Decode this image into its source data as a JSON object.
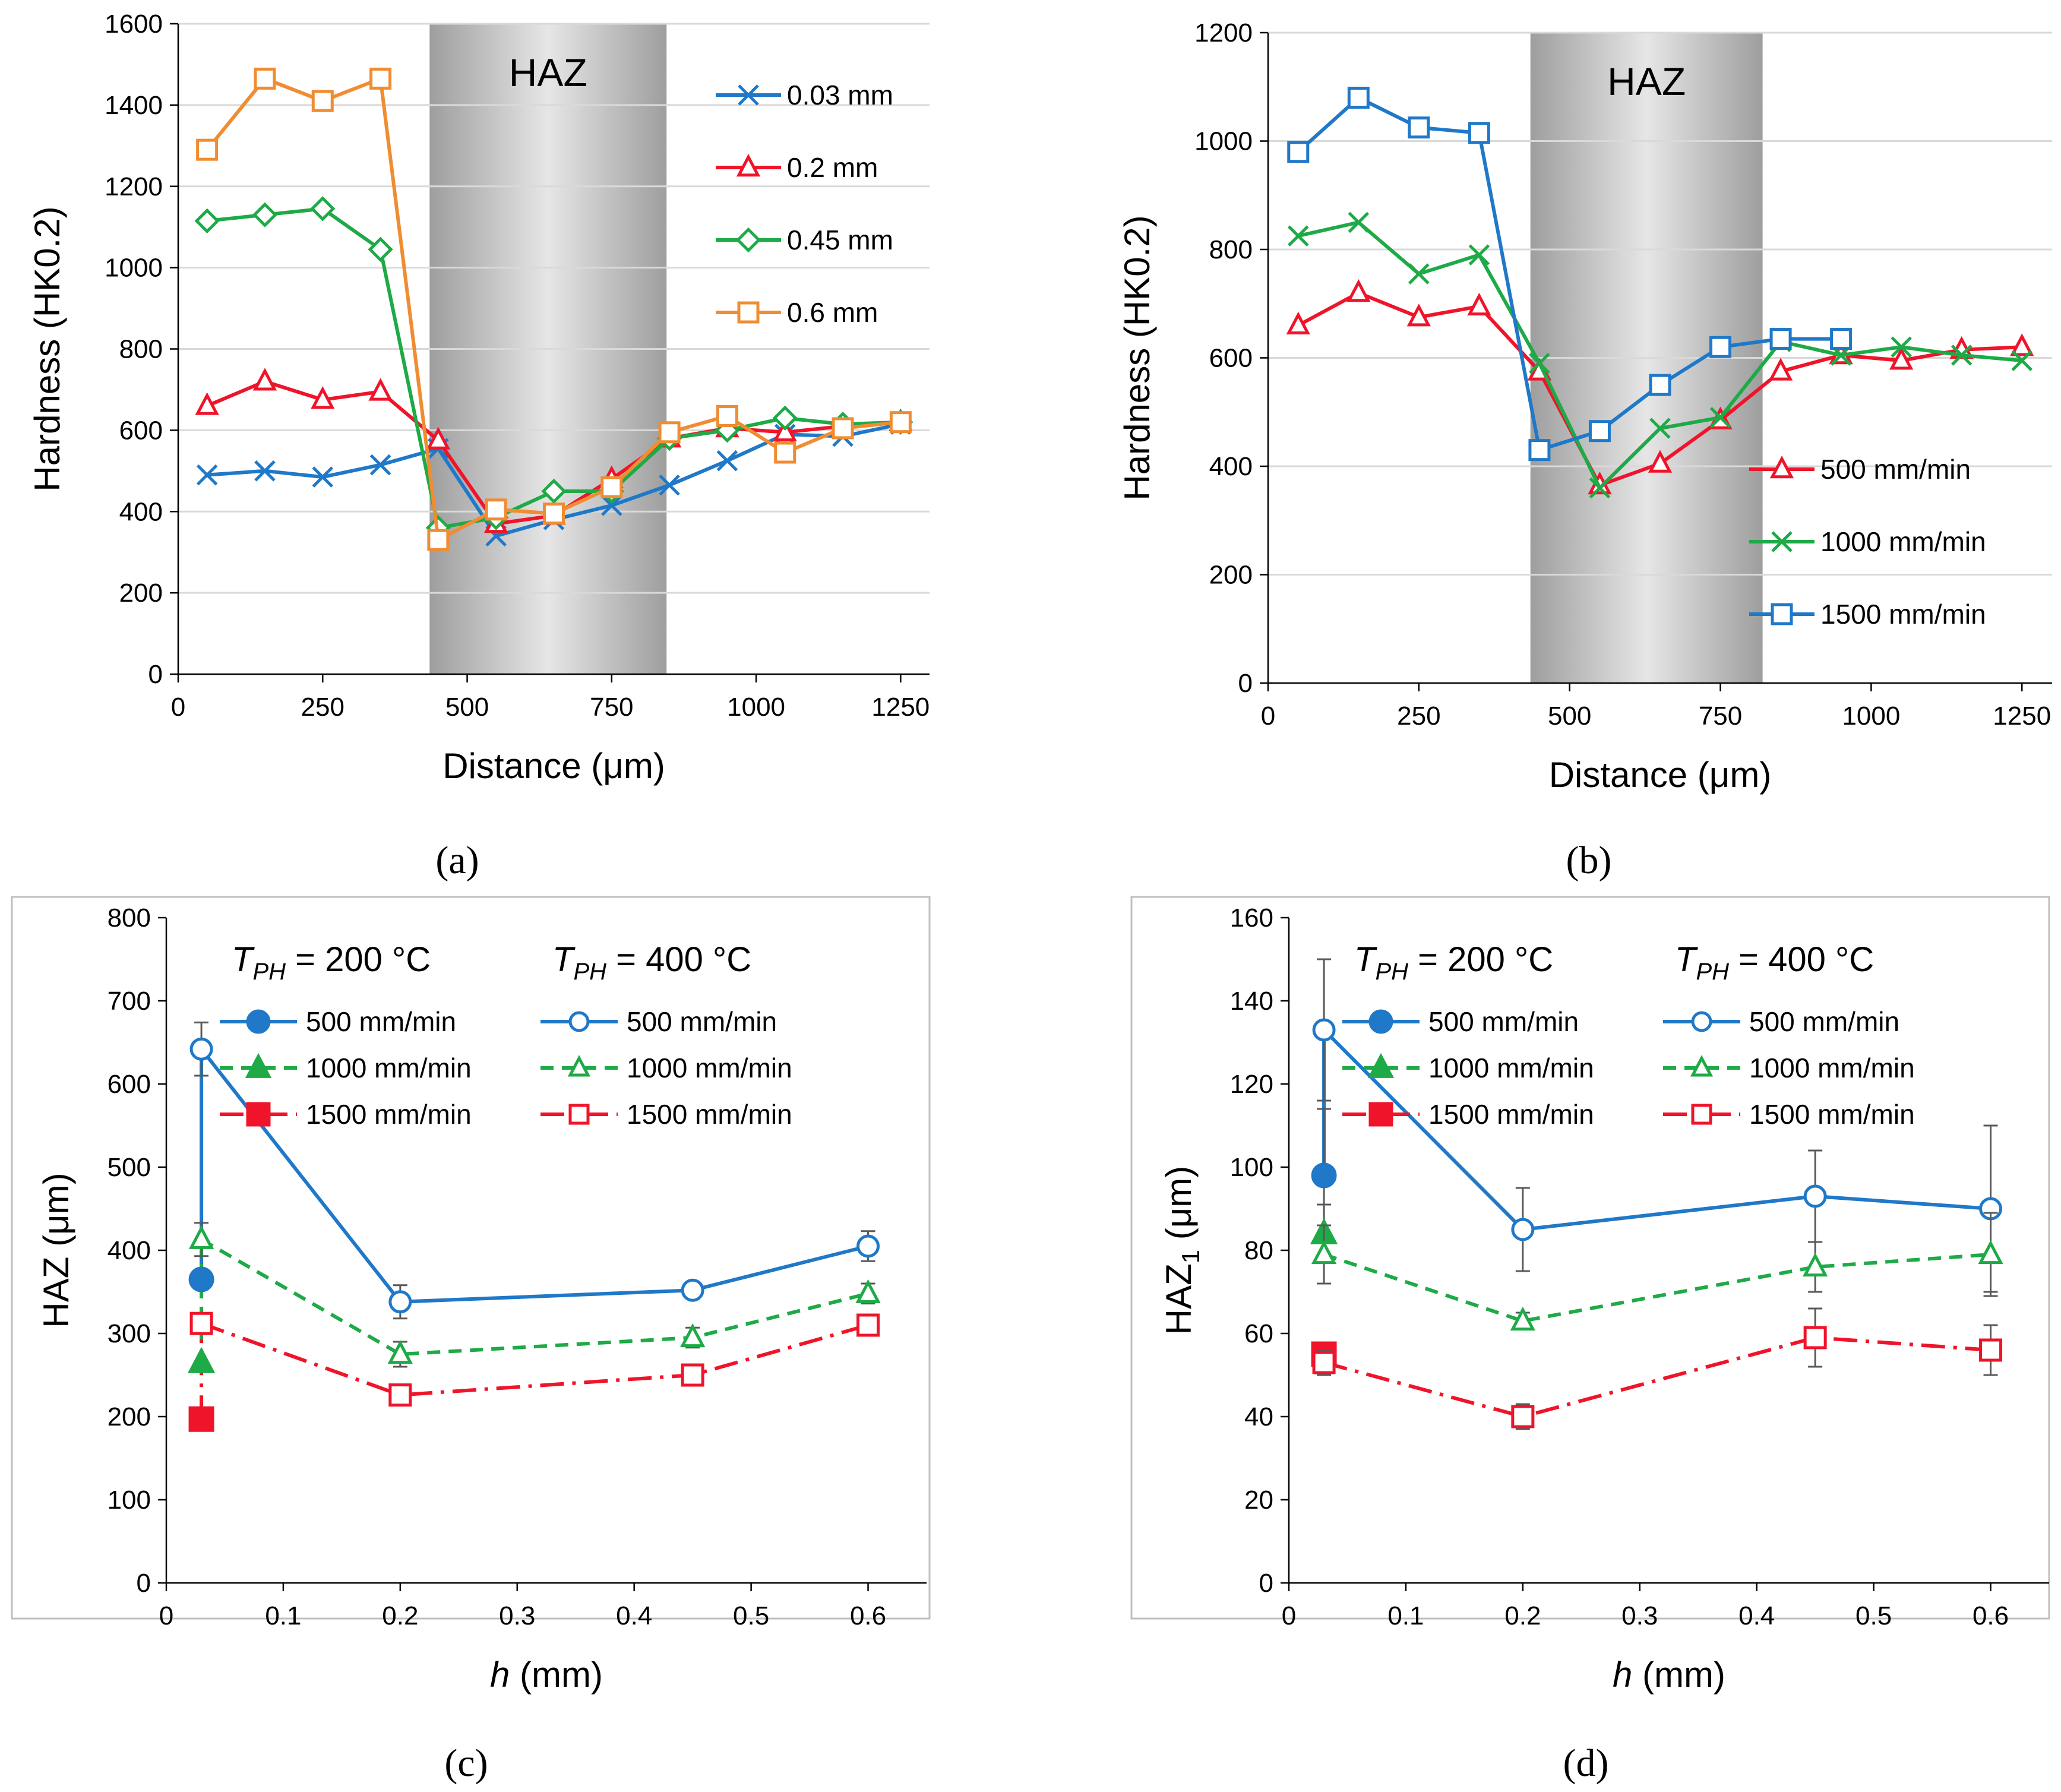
{
  "colors": {
    "blue": "#1f78c8",
    "red": "#f0142a",
    "green": "#1eaa46",
    "orange": "#f08c32",
    "haz_dark": "#9e9e9e",
    "haz_light": "#e6e6e6"
  },
  "chart_data": [
    {
      "id": "a",
      "type": "line",
      "panel_label": "(a)",
      "title": "",
      "xlabel": "Distance (μm)",
      "ylabel": "Hardness (HK0.2)",
      "xlim": [
        0,
        1300
      ],
      "ylim": [
        0,
        1600
      ],
      "xticks": [
        0,
        250,
        500,
        750,
        1000,
        1250
      ],
      "yticks": [
        0,
        200,
        400,
        600,
        800,
        1000,
        1200,
        1400,
        1600
      ],
      "grid": true,
      "legend_position": "top-right",
      "haz_region": {
        "label": "HAZ",
        "x_start": 435,
        "x_end": 845
      },
      "series": [
        {
          "name": "0.03 mm",
          "color": "#1f78c8",
          "marker": "x",
          "x": [
            50,
            150,
            250,
            350,
            450,
            550,
            650,
            750,
            850,
            950,
            1050,
            1150,
            1250
          ],
          "y": [
            490,
            500,
            485,
            515,
            555,
            340,
            380,
            415,
            465,
            525,
            590,
            585,
            615
          ]
        },
        {
          "name": "0.2 mm",
          "color": "#f0142a",
          "marker": "triangle",
          "x": [
            50,
            150,
            250,
            350,
            450,
            550,
            650,
            750,
            850,
            950,
            1050,
            1150,
            1250
          ],
          "y": [
            660,
            720,
            675,
            695,
            575,
            370,
            390,
            480,
            580,
            605,
            595,
            610,
            620
          ]
        },
        {
          "name": "0.45 mm",
          "color": "#1eaa46",
          "marker": "diamond",
          "x": [
            50,
            150,
            250,
            350,
            450,
            550,
            650,
            750,
            850,
            950,
            1050,
            1150,
            1250
          ],
          "y": [
            1115,
            1130,
            1145,
            1045,
            360,
            385,
            450,
            450,
            580,
            600,
            630,
            615,
            620
          ]
        },
        {
          "name": "0.6 mm",
          "color": "#f08c32",
          "marker": "square",
          "x": [
            50,
            150,
            250,
            350,
            450,
            550,
            650,
            750,
            850,
            950,
            1050,
            1150,
            1250
          ],
          "y": [
            1290,
            1465,
            1410,
            1465,
            330,
            405,
            395,
            460,
            595,
            635,
            545,
            605,
            620
          ]
        }
      ]
    },
    {
      "id": "b",
      "type": "line",
      "panel_label": "(b)",
      "title": "",
      "xlabel": "Distance (μm)",
      "ylabel": "Hardness (HK0.2)",
      "xlim": [
        0,
        1300
      ],
      "ylim": [
        0,
        1200
      ],
      "xticks": [
        0,
        250,
        500,
        750,
        1000,
        1250
      ],
      "yticks": [
        0,
        200,
        400,
        600,
        800,
        1000,
        1200
      ],
      "grid": true,
      "legend_position": "bottom-right",
      "haz_region": {
        "label": "HAZ",
        "x_start": 435,
        "x_end": 820
      },
      "series": [
        {
          "name": "500 mm/min",
          "color": "#f0142a",
          "marker": "triangle",
          "x": [
            50,
            150,
            250,
            350,
            450,
            550,
            650,
            750,
            850,
            950,
            1050,
            1150,
            1250
          ],
          "y": [
            660,
            720,
            675,
            695,
            575,
            365,
            405,
            485,
            575,
            605,
            595,
            615,
            620
          ]
        },
        {
          "name": "1000 mm/min",
          "color": "#1eaa46",
          "marker": "x",
          "x": [
            50,
            150,
            250,
            350,
            450,
            550,
            650,
            750,
            850,
            950,
            1050,
            1150,
            1250
          ],
          "y": [
            825,
            850,
            755,
            790,
            590,
            360,
            470,
            490,
            630,
            605,
            620,
            605,
            595
          ]
        },
        {
          "name": "1500 mm/min",
          "color": "#1f78c8",
          "marker": "square",
          "x": [
            50,
            150,
            250,
            350,
            450,
            550,
            650,
            750,
            850,
            950
          ],
          "y": [
            980,
            1080,
            1025,
            1015,
            430,
            465,
            550,
            620,
            635,
            635
          ]
        }
      ]
    },
    {
      "id": "c",
      "type": "scatter",
      "panel_label": "(c)",
      "title": "",
      "xlabel_italic": "h",
      "xlabel_rest": " (mm)",
      "ylabel": "HAZ (μm)",
      "xlim": [
        0,
        0.65
      ],
      "ylim": [
        0,
        800
      ],
      "xticks": [
        "0",
        "0.1",
        "0.2",
        "0.3",
        "0.4",
        "0.5",
        "0.6"
      ],
      "xtick_values": [
        0,
        0.1,
        0.2,
        0.3,
        0.4,
        0.5,
        0.6
      ],
      "yticks": [
        0,
        100,
        200,
        300,
        400,
        500,
        600,
        700,
        800
      ],
      "grid": false,
      "legend_position": "top",
      "legend_groups": [
        {
          "t_italic": "T",
          "t_sub": "PH",
          "t_rest": " = 200 °C"
        },
        {
          "t_italic": "T",
          "t_sub": "PH",
          "t_rest": " = 400 °C"
        }
      ],
      "series": [
        {
          "name": "500 mm/min",
          "group": "200",
          "color": "#1f78c8",
          "marker": "circle",
          "filled": true,
          "dash": "solid",
          "x": [
            0.03
          ],
          "y": [
            365
          ],
          "err": [
            null
          ]
        },
        {
          "name": "1000 mm/min",
          "group": "200",
          "color": "#1eaa46",
          "marker": "triangle",
          "filled": true,
          "dash": "dashed",
          "x": [
            0.03
          ],
          "y": [
            265
          ],
          "err": [
            null
          ]
        },
        {
          "name": "1500 mm/min",
          "group": "200",
          "color": "#f0142a",
          "marker": "square",
          "filled": true,
          "dash": "dashdot",
          "x": [
            0.03
          ],
          "y": [
            197
          ],
          "err": [
            null
          ]
        },
        {
          "name": "500 mm/min",
          "group": "400",
          "color": "#1f78c8",
          "marker": "circle",
          "filled": false,
          "dash": "solid",
          "x": [
            0.03,
            0.2,
            0.45,
            0.6
          ],
          "y": [
            642,
            338,
            352,
            405
          ],
          "err": [
            32,
            20,
            8,
            18
          ]
        },
        {
          "name": "1000 mm/min",
          "group": "400",
          "color": "#1eaa46",
          "marker": "triangle",
          "filled": false,
          "dash": "dashed",
          "x": [
            0.03,
            0.2,
            0.45,
            0.6
          ],
          "y": [
            413,
            275,
            295,
            348
          ],
          "err": [
            20,
            15,
            12,
            12
          ]
        },
        {
          "name": "1500 mm/min",
          "group": "400",
          "color": "#f0142a",
          "marker": "square",
          "filled": false,
          "dash": "dashdot",
          "x": [
            0.03,
            0.2,
            0.45,
            0.6
          ],
          "y": [
            312,
            226,
            250,
            310
          ],
          "err": [
            12,
            10,
            8,
            10
          ]
        }
      ],
      "connectors": [
        {
          "color": "#1f78c8",
          "dash": "solid",
          "from": [
            0.03,
            365
          ],
          "to": [
            0.03,
            642
          ]
        },
        {
          "color": "#1eaa46",
          "dash": "dashed",
          "from": [
            0.03,
            265
          ],
          "to": [
            0.03,
            413
          ]
        },
        {
          "color": "#f0142a",
          "dash": "dashdot",
          "from": [
            0.03,
            197
          ],
          "to": [
            0.03,
            312
          ]
        }
      ]
    },
    {
      "id": "d",
      "type": "scatter",
      "panel_label": "(d)",
      "title": "",
      "xlabel_italic": "h",
      "xlabel_rest": " (mm)",
      "ylabel_main": "HAZ",
      "ylabel_sub": "1",
      "ylabel_rest": " (μm)",
      "xlim": [
        0,
        0.65
      ],
      "ylim": [
        0,
        160
      ],
      "xticks": [
        "0",
        "0.1",
        "0.2",
        "0.3",
        "0.4",
        "0.5",
        "0.6"
      ],
      "xtick_values": [
        0,
        0.1,
        0.2,
        0.3,
        0.4,
        0.5,
        0.6
      ],
      "yticks": [
        0,
        20,
        40,
        60,
        80,
        100,
        120,
        140,
        160
      ],
      "grid": false,
      "legend_position": "top",
      "legend_groups": [
        {
          "t_italic": "T",
          "t_sub": "PH",
          "t_rest": " = 200 °C"
        },
        {
          "t_italic": "T",
          "t_sub": "PH",
          "t_rest": " = 400 °C"
        }
      ],
      "series": [
        {
          "name": "500 mm/min",
          "group": "200",
          "color": "#1f78c8",
          "marker": "circle",
          "filled": true,
          "dash": "solid",
          "x": [
            0.03
          ],
          "y": [
            98
          ],
          "err": [
            16
          ]
        },
        {
          "name": "1000 mm/min",
          "group": "200",
          "color": "#1eaa46",
          "marker": "triangle",
          "filled": true,
          "dash": "dashed",
          "x": [
            0.03
          ],
          "y": [
            84
          ],
          "err": [
            7
          ]
        },
        {
          "name": "1500 mm/min",
          "group": "200",
          "color": "#f0142a",
          "marker": "square",
          "filled": true,
          "dash": "dashdot",
          "x": [
            0.03
          ],
          "y": [
            55
          ],
          "err": [
            null
          ]
        },
        {
          "name": "500 mm/min",
          "group": "400",
          "color": "#1f78c8",
          "marker": "circle",
          "filled": false,
          "dash": "solid",
          "x": [
            0.03,
            0.2,
            0.45,
            0.6
          ],
          "y": [
            133,
            85,
            93,
            90
          ],
          "err": [
            17,
            10,
            11,
            20
          ]
        },
        {
          "name": "1000 mm/min",
          "group": "400",
          "color": "#1eaa46",
          "marker": "triangle",
          "filled": false,
          "dash": "dashed",
          "x": [
            0.03,
            0.2,
            0.45,
            0.6
          ],
          "y": [
            79,
            63,
            76,
            79
          ],
          "err": [
            7,
            2,
            6,
            10
          ]
        },
        {
          "name": "1500 mm/min",
          "group": "400",
          "color": "#f0142a",
          "marker": "square",
          "filled": false,
          "dash": "dashdot",
          "x": [
            0.03,
            0.2,
            0.45,
            0.6
          ],
          "y": [
            53,
            40,
            59,
            56
          ],
          "err": [
            3,
            3,
            7,
            6
          ]
        }
      ],
      "connectors": [
        {
          "color": "#1f78c8",
          "dash": "solid",
          "from": [
            0.03,
            98
          ],
          "to": [
            0.03,
            133
          ]
        }
      ]
    }
  ]
}
